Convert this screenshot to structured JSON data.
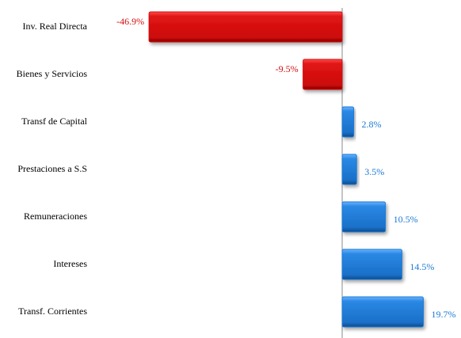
{
  "chart_data": {
    "type": "hbar",
    "categories": [
      "Inv. Real Directa",
      "Bienes y Servicios",
      "Transf de Capital",
      "Prestaciones a S.S",
      "Remuneraciones",
      "Intereses",
      "Transf. Corrientes"
    ],
    "values": [
      -46.9,
      -9.5,
      2.8,
      3.5,
      10.5,
      14.5,
      19.7
    ],
    "value_labels": [
      "-46.9%",
      "-9.5%",
      "2.8%",
      "3.5%",
      "10.5%",
      "14.5%",
      "19.7%"
    ],
    "negative_color": "#d40f0f",
    "positive_color": "#1c7ad6",
    "xlim": [
      -50,
      25
    ]
  }
}
